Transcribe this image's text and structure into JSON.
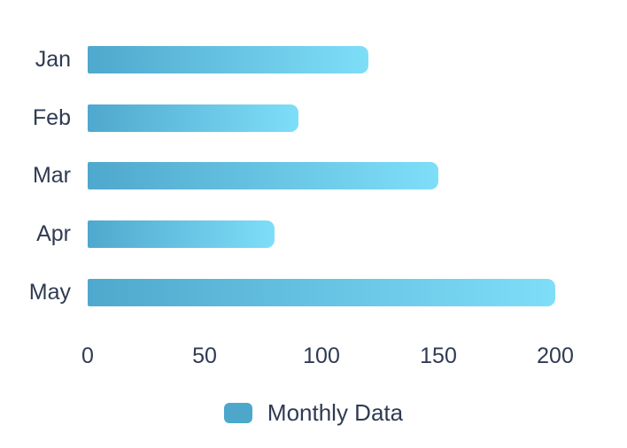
{
  "chart_data": {
    "type": "bar",
    "orientation": "horizontal",
    "title": "",
    "xlabel": "",
    "ylabel": "",
    "categories": [
      "Jan",
      "Feb",
      "Mar",
      "Apr",
      "May"
    ],
    "series": [
      {
        "name": "Monthly Data",
        "values": [
          120,
          90,
          150,
          80,
          200
        ]
      }
    ],
    "xlim": [
      0,
      200
    ],
    "xticks": [
      "0",
      "50",
      "100",
      "150",
      "200"
    ],
    "xtick_values": [
      0,
      50,
      100,
      150,
      200
    ],
    "grid": false,
    "legend": {
      "position": "bottom",
      "label": "Monthly Data"
    },
    "colors": {
      "bar_gradient_start": "#4fa8cd",
      "bar_gradient_end": "#7edef8",
      "legend_swatch": "#4da7cb",
      "text": "#2f3b52",
      "background": "#ffffff"
    }
  }
}
